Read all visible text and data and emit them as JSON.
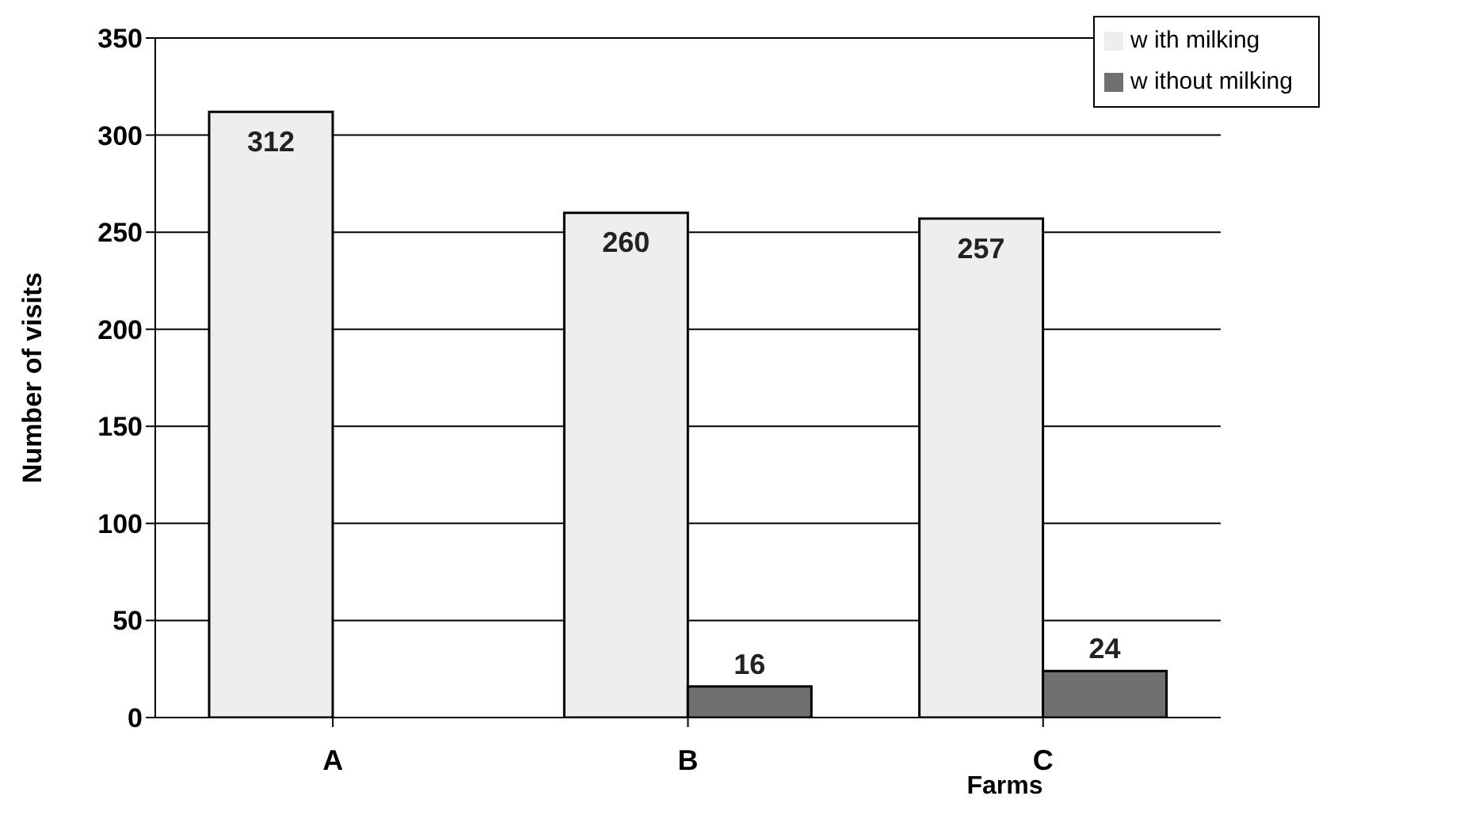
{
  "chart_data": {
    "type": "bar",
    "xlabel": "Farms",
    "ylabel": "Number of visits",
    "categories": [
      "A",
      "B",
      "C"
    ],
    "series": [
      {
        "name": "w ith milking",
        "color": "#eeeeee",
        "values": [
          312,
          260,
          257
        ]
      },
      {
        "name": "w ithout milking",
        "color": "#707070",
        "values": [
          null,
          16,
          24
        ]
      }
    ],
    "ylim": [
      0,
      350
    ],
    "yticks": [
      0,
      50,
      100,
      150,
      200,
      250,
      300,
      350
    ],
    "grid": "y",
    "legend": "top right",
    "data_labels": true
  }
}
